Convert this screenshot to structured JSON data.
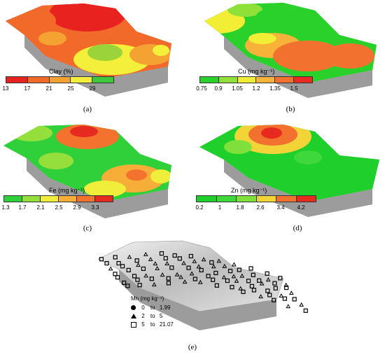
{
  "panels": [
    {
      "id": "a",
      "caption": "(a)",
      "legend_title": "Clay (%)",
      "ticks": [
        "13",
        "17",
        "21",
        "25",
        "29"
      ],
      "colors": [
        "#e8231f",
        "#f26a2a",
        "#f4a231",
        "#f3ef3a",
        "#3ec83c"
      ]
    },
    {
      "id": "b",
      "caption": "(b)",
      "legend_title": "Cu (mg kg⁻¹)",
      "ticks": [
        "0.75",
        "0.9",
        "1.05",
        "1.2",
        "1.35",
        "1.5"
      ],
      "colors": [
        "#2ad12a",
        "#8fe13a",
        "#f2ee36",
        "#f7b23a",
        "#f3712f",
        "#e82a22"
      ]
    },
    {
      "id": "c",
      "caption": "(c)",
      "legend_title": "Fe (mg kg⁻¹)",
      "ticks": [
        "1.3",
        "1.7",
        "2.1",
        "2.5",
        "2.9",
        "3.3"
      ],
      "colors": [
        "#2fd03a",
        "#95df3c",
        "#f1ee3b",
        "#f6ae38",
        "#f3732e",
        "#e62a20"
      ]
    },
    {
      "id": "d",
      "caption": "(d)",
      "legend_title": "Zn (mg kg⁻¹)",
      "ticks": [
        "0.2",
        "1",
        "1.8",
        "2.6",
        "3.4",
        "4.2"
      ],
      "colors": [
        "#1fd02c",
        "#3ed83a",
        "#7fe03c",
        "#f3d438",
        "#f3712f",
        "#e62a20"
      ]
    }
  ],
  "mn": {
    "caption": "(e)",
    "legend_title": "Mn (mg kg⁻¹)",
    "classes": [
      {
        "symbol": "circle-icon",
        "from": "0",
        "to_word": "to",
        "to": "1.99"
      },
      {
        "symbol": "triangle-icon",
        "from": "2",
        "to_word": "to",
        "to": "5"
      },
      {
        "symbol": "square-icon",
        "from": "5",
        "to_word": "to",
        "to": "21.07"
      }
    ]
  }
}
